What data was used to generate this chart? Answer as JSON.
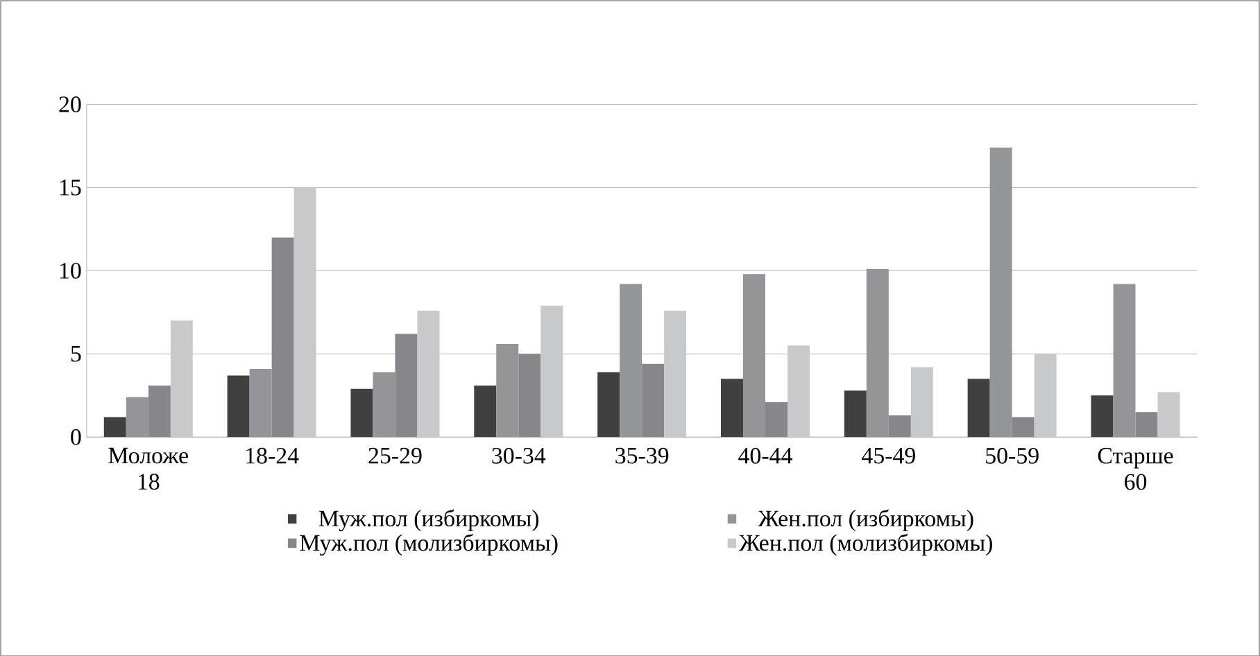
{
  "chart_data": {
    "type": "bar",
    "categories": [
      "Моложе 18",
      "18-24",
      "25-29",
      "30-34",
      "35-39",
      "40-44",
      "45-49",
      "50-59",
      "Старше 60"
    ],
    "series": [
      {
        "name": "Муж.пол (избиркомы)",
        "color": "#404040",
        "values": [
          1.2,
          3.7,
          2.9,
          3.1,
          3.9,
          3.5,
          2.8,
          3.5,
          2.5
        ]
      },
      {
        "name": "Жен.пол (избиркомы)",
        "color": "#939598",
        "values": [
          2.4,
          4.1,
          3.9,
          5.6,
          9.2,
          9.8,
          10.1,
          17.4,
          9.2
        ]
      },
      {
        "name": "Муж.пол (молизбиркомы)",
        "color": "#87878b",
        "values": [
          3.1,
          12.0,
          6.2,
          5.0,
          4.4,
          2.1,
          1.3,
          1.2,
          1.5
        ]
      },
      {
        "name": "Жен.пол (молизбиркомы)",
        "color": "#c8c9cb",
        "values": [
          7.0,
          15.0,
          7.6,
          7.9,
          7.6,
          5.5,
          4.2,
          5.0,
          2.7
        ]
      }
    ],
    "ylim": [
      0,
      20
    ],
    "yticks": [
      0,
      5,
      10,
      15,
      20
    ],
    "grid": "y",
    "legend": "bottom"
  }
}
